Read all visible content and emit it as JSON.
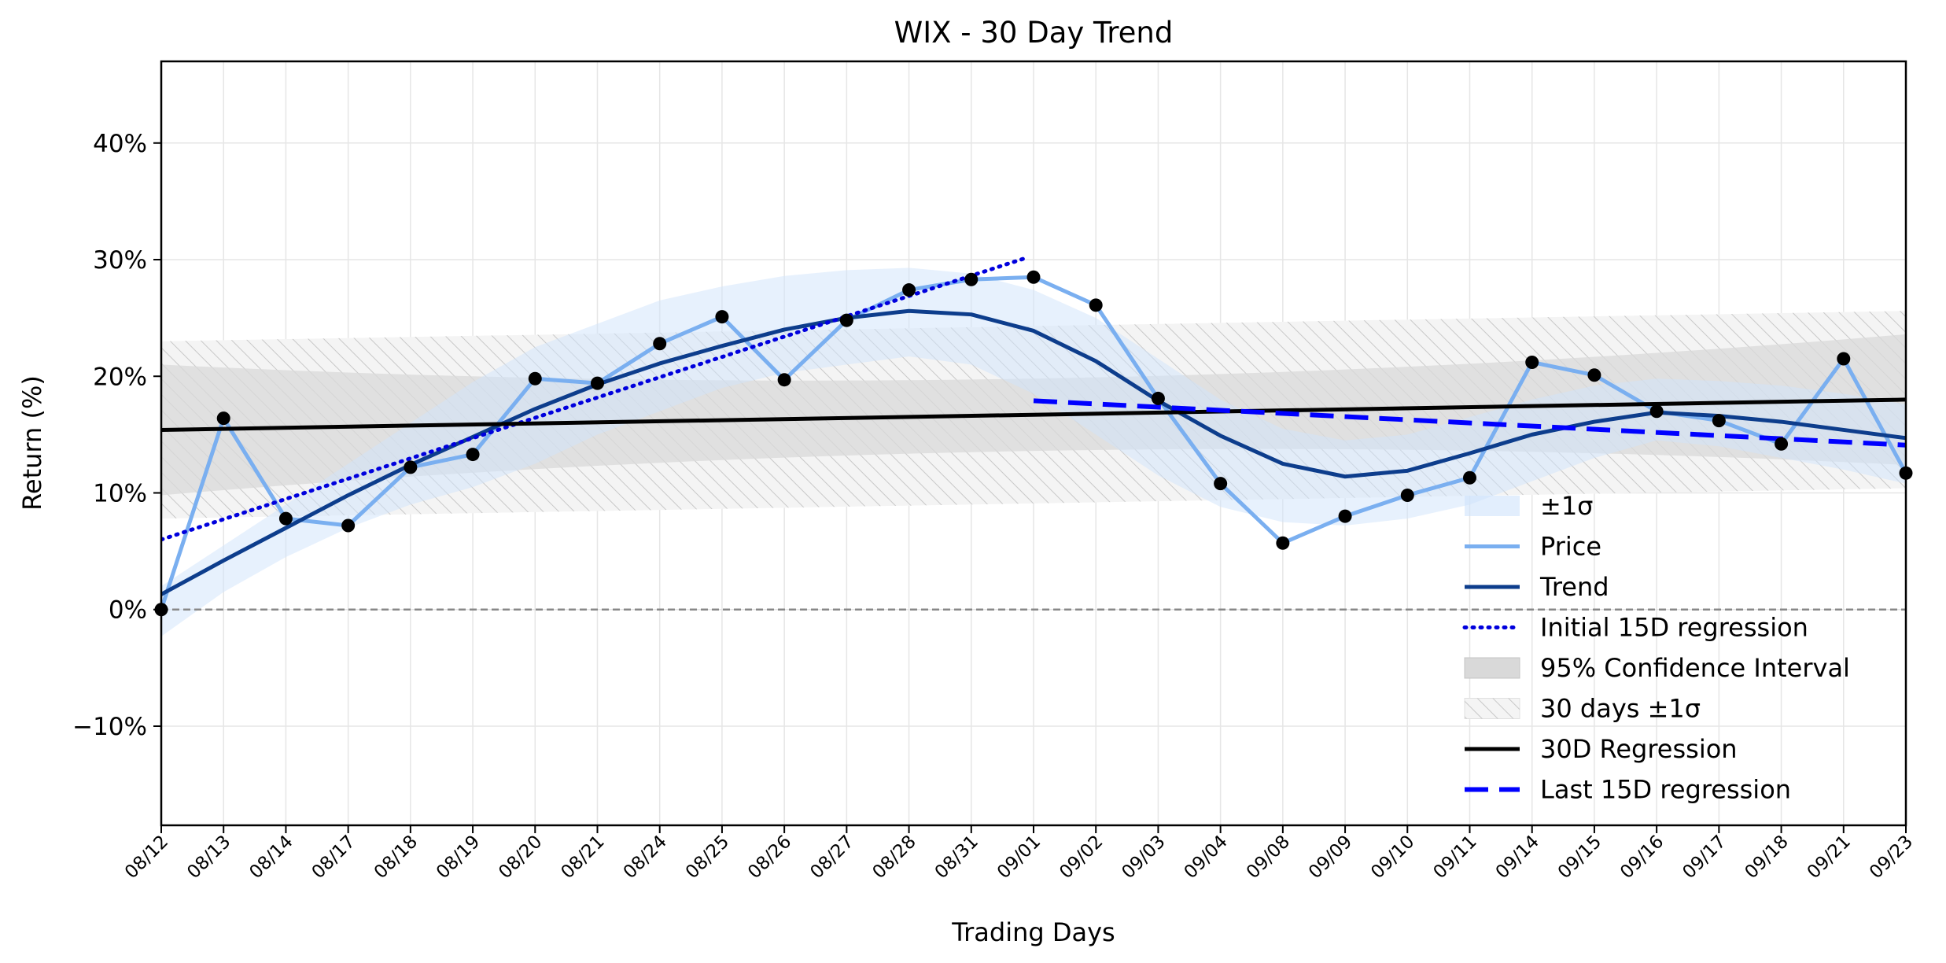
{
  "chart_data": {
    "type": "line",
    "title": "WIX - 30 Day Trend",
    "xlabel": "Trading Days",
    "ylabel": "Return (%)",
    "ylim": [
      -18.5,
      47
    ],
    "yticks": [
      -10,
      0,
      10,
      20,
      30,
      40
    ],
    "ytick_labels": [
      "−10%",
      "0%",
      "10%",
      "20%",
      "30%",
      "40%"
    ],
    "grid": true,
    "legend_position": "lower-right",
    "categories": [
      "08/12",
      "08/13",
      "08/14",
      "08/17",
      "08/18",
      "08/19",
      "08/20",
      "08/21",
      "08/24",
      "08/25",
      "08/26",
      "08/27",
      "08/28",
      "08/31",
      "09/01",
      "09/02",
      "09/03",
      "09/04",
      "09/08",
      "09/09",
      "09/10",
      "09/11",
      "09/14",
      "09/15",
      "09/16",
      "09/17",
      "09/18",
      "09/21",
      "09/23"
    ],
    "series": [
      {
        "name": "Price",
        "values": [
          0.0,
          16.4,
          7.8,
          7.2,
          12.2,
          13.3,
          19.8,
          19.4,
          22.8,
          25.1,
          19.7,
          24.8,
          27.4,
          28.3,
          28.5,
          26.1,
          18.1,
          10.8,
          5.7,
          8.0,
          9.8,
          11.3,
          21.2,
          20.1,
          17.0,
          16.2,
          14.2,
          21.5,
          11.7
        ],
        "color": "#7aaff0"
      },
      {
        "name": "Trend",
        "values": [
          1.3,
          4.2,
          7.0,
          9.8,
          12.4,
          14.8,
          17.2,
          19.3,
          21.1,
          22.6,
          24.0,
          25.0,
          25.6,
          25.3,
          23.9,
          21.3,
          17.9,
          14.9,
          12.5,
          11.4,
          11.9,
          13.4,
          15.0,
          16.1,
          16.9,
          16.6,
          16.1,
          15.4,
          14.7
        ],
        "color": "#0d3d8c"
      },
      {
        "name": "Initial 15D regression",
        "x_range": [
          0,
          13.85
        ],
        "y_range": [
          6.0,
          30.1
        ],
        "color": "#0000dd",
        "style": "dotted"
      },
      {
        "name": "30D Regression",
        "x_range": [
          0,
          28
        ],
        "y_range": [
          15.4,
          18.0
        ],
        "color": "#000000",
        "style": "solid"
      },
      {
        "name": "Last 15D regression",
        "x_range": [
          14,
          28
        ],
        "y_range": [
          17.9,
          14.1
        ],
        "color": "#0000ff",
        "style": "dashed"
      }
    ],
    "bands": [
      {
        "name": "±1σ",
        "upper": [
          2.0,
          5.5,
          9.0,
          12.5,
          16.0,
          19.5,
          22.5,
          24.5,
          26.5,
          27.7,
          28.6,
          29.1,
          29.3,
          28.8,
          27.4,
          25.0,
          21.5,
          18.0,
          15.5,
          14.5,
          15.0,
          16.5,
          18.0,
          19.2,
          19.8,
          19.6,
          19.2,
          18.5,
          17.6
        ],
        "lower": [
          -2.3,
          1.5,
          4.5,
          7.0,
          9.0,
          10.5,
          12.5,
          15.0,
          17.0,
          19.0,
          20.3,
          21.0,
          21.7,
          21.0,
          18.5,
          15.0,
          11.5,
          8.8,
          7.5,
          7.2,
          7.8,
          9.0,
          11.0,
          13.0,
          14.5,
          14.0,
          13.0,
          12.0,
          10.8
        ],
        "color": "#cfe3fb"
      },
      {
        "name": "95% Confidence Interval",
        "upper_range": [
          21.0,
          23.6
        ],
        "lower_range": [
          9.8,
          12.4
        ],
        "mid_upper": 19.8,
        "mid_lower": 13.6,
        "color": "#d9d9d9"
      },
      {
        "name": "30 days ±1σ",
        "upper_range": [
          23.0,
          25.6
        ],
        "lower_range": [
          7.8,
          10.4
        ],
        "color": "#bcbcbc",
        "style": "hatched"
      }
    ],
    "zero_line": 0,
    "legend": [
      "±1σ",
      "Price",
      "Trend",
      "Initial 15D regression",
      "95% Confidence Interval",
      "30 days ±1σ",
      "30D Regression",
      "Last 15D regression"
    ]
  }
}
